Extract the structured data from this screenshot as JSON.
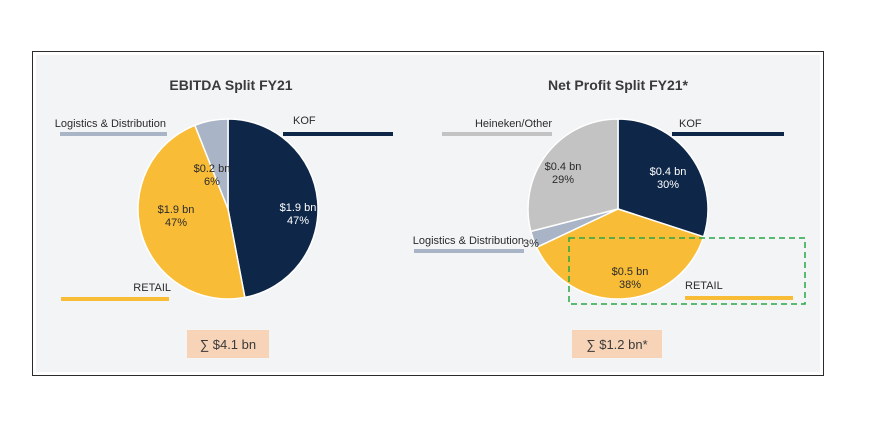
{
  "colors": {
    "kof": "#0e2749",
    "retail": "#f8bc37",
    "logistics": "#a9b4c6",
    "heineken": "#c3c3c3",
    "total_box": "#f7d3b7",
    "highlight": "#28a745",
    "outline": "#2b2b2b"
  },
  "chart_data": [
    {
      "type": "pie",
      "title": "EBITDA Split FY21",
      "slices": [
        {
          "label": "KOF",
          "value": 47,
          "amount": "$1.9 bn",
          "percent": "47%",
          "color": "#0e2749"
        },
        {
          "label": "RETAIL",
          "value": 47,
          "amount": "$1.9 bn",
          "percent": "47%",
          "color": "#f8bc37"
        },
        {
          "label": "Logistics & Distribution",
          "value": 6,
          "amount": "$0.2 bn",
          "percent": "6%",
          "color": "#a9b4c6"
        }
      ],
      "total": "∑ $4.1 bn"
    },
    {
      "type": "pie",
      "title": "Net Profit Split FY21*",
      "slices": [
        {
          "label": "KOF",
          "value": 30,
          "amount": "$0.4 bn",
          "percent": "30%",
          "color": "#0e2749"
        },
        {
          "label": "RETAIL",
          "value": 38,
          "amount": "$0.5 bn",
          "percent": "38%",
          "color": "#f8bc37"
        },
        {
          "label": "Logistics & Distribution",
          "value": 3,
          "amount": "",
          "percent": "3%",
          "color": "#a9b4c6"
        },
        {
          "label": "Heineken/Other",
          "value": 29,
          "amount": "$0.4 bn",
          "percent": "29%",
          "color": "#c3c3c3"
        }
      ],
      "total": "∑ $1.2 bn*",
      "highlight_label": "RETAIL"
    }
  ]
}
